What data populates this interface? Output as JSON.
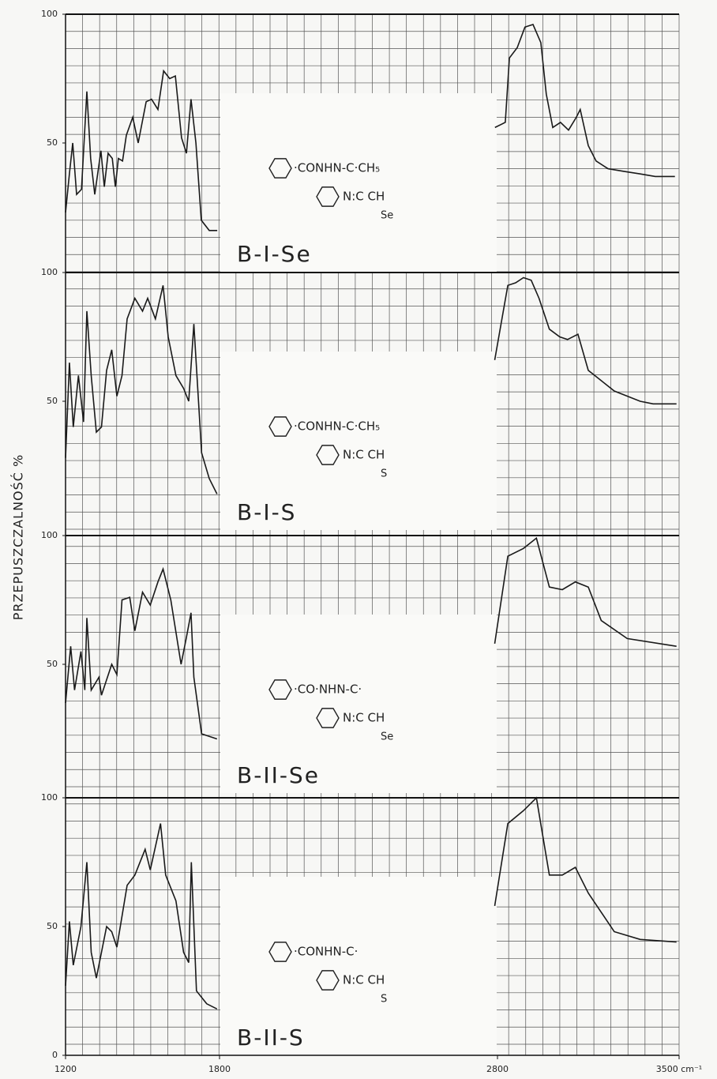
{
  "chart_data": [
    {
      "type": "line",
      "label": "B-I-Se",
      "ylabel": "PRZEPUSZCZALNOŚĆ %",
      "formula": [
        "·CONHN-C·CH₅",
        "N:C  CH",
        "Se"
      ],
      "ylim": [
        0,
        100
      ],
      "yticks": [
        50,
        100
      ],
      "x": [
        1200,
        1215,
        1228,
        1243,
        1262,
        1283,
        1298,
        1314,
        1338,
        1351,
        1366,
        1382,
        1394,
        1406,
        1422,
        1437,
        1462,
        1483,
        1514,
        1535,
        1560,
        1582,
        1606,
        1628,
        1652,
        1671,
        1689,
        1708,
        1729,
        1760,
        1791,
        null,
        2791,
        2830,
        2846,
        2876,
        2906,
        2937,
        2967,
        2988,
        3013,
        3043,
        3074,
        3104,
        3119,
        3150,
        3180,
        3226,
        3287,
        3348,
        3408,
        3484
      ],
      "values": [
        23,
        38,
        50,
        30,
        32,
        70,
        44,
        30,
        47,
        33,
        46,
        44,
        33,
        44,
        43,
        53,
        60,
        50,
        66,
        67,
        63,
        78,
        75,
        76,
        52,
        46,
        67,
        50,
        20,
        16,
        16,
        null,
        56,
        58,
        83,
        87,
        95,
        96,
        89,
        69,
        56,
        58,
        55,
        60,
        63,
        49,
        43,
        40,
        39,
        38,
        37,
        37
      ]
    },
    {
      "type": "line",
      "label": "B-I-S",
      "formula": [
        "·CONHN-C·CH₅",
        "N:C  CH",
        "S"
      ],
      "ylim": [
        0,
        100
      ],
      "yticks": [
        50,
        100
      ],
      "x": [
        1200,
        1215,
        1230,
        1250,
        1270,
        1283,
        1300,
        1320,
        1340,
        1360,
        1380,
        1400,
        1420,
        1440,
        1470,
        1500,
        1520,
        1550,
        1580,
        1600,
        1630,
        1660,
        1680,
        1700,
        1730,
        1760,
        1790,
        null,
        2790,
        2840,
        2870,
        2900,
        2930,
        2960,
        3000,
        3040,
        3070,
        3110,
        3150,
        3200,
        3250,
        3300,
        3350,
        3400,
        3490
      ],
      "values": [
        28,
        65,
        40,
        60,
        42,
        85,
        60,
        38,
        40,
        62,
        70,
        52,
        60,
        82,
        90,
        85,
        90,
        82,
        95,
        75,
        60,
        55,
        50,
        80,
        30,
        20,
        14,
        null,
        66,
        95,
        96,
        98,
        97,
        90,
        78,
        75,
        74,
        76,
        62,
        58,
        54,
        52,
        50,
        49,
        49
      ]
    },
    {
      "type": "line",
      "label": "B-II-Se",
      "formula": [
        "·CO·NHN-C·",
        "N:C  CH",
        "Se"
      ],
      "ylim": [
        0,
        100
      ],
      "yticks": [
        50,
        100
      ],
      "x": [
        1200,
        1220,
        1235,
        1260,
        1275,
        1283,
        1300,
        1330,
        1340,
        1380,
        1400,
        1420,
        1450,
        1470,
        1500,
        1530,
        1560,
        1580,
        1610,
        1650,
        1670,
        1689,
        1700,
        1730,
        1790,
        null,
        2790,
        2840,
        2900,
        2950,
        3000,
        3050,
        3100,
        3150,
        3200,
        3300,
        3490
      ],
      "values": [
        35,
        57,
        40,
        55,
        40,
        68,
        40,
        45,
        38,
        50,
        46,
        75,
        76,
        63,
        78,
        73,
        82,
        87,
        75,
        50,
        60,
        70,
        45,
        23,
        21,
        null,
        58,
        92,
        95,
        99,
        80,
        79,
        82,
        80,
        67,
        60,
        57
      ]
    },
    {
      "type": "line",
      "label": "B-II-S",
      "formula": [
        "·CONHN-C·",
        "N:C  CH",
        "S"
      ],
      "ylim": [
        0,
        100
      ],
      "yticks": [
        0,
        50,
        100
      ],
      "xlim": [
        1200,
        3500
      ],
      "xticks": [
        1200,
        1800,
        2800,
        {
          "value": 3500,
          "label": "3500 cm⁻¹"
        }
      ],
      "x": [
        1200,
        1215,
        1230,
        1260,
        1283,
        1300,
        1320,
        1360,
        1380,
        1400,
        1440,
        1470,
        1510,
        1530,
        1570,
        1590,
        1630,
        1660,
        1680,
        1690,
        1710,
        1750,
        1790,
        null,
        2790,
        2840,
        2900,
        2950,
        3000,
        3050,
        3100,
        3150,
        3250,
        3350,
        3490
      ],
      "values": [
        27,
        52,
        35,
        50,
        75,
        40,
        30,
        50,
        48,
        42,
        66,
        70,
        80,
        72,
        90,
        70,
        60,
        40,
        36,
        75,
        25,
        20,
        18,
        null,
        58,
        90,
        95,
        100,
        70,
        70,
        73,
        63,
        48,
        45,
        44
      ]
    }
  ]
}
